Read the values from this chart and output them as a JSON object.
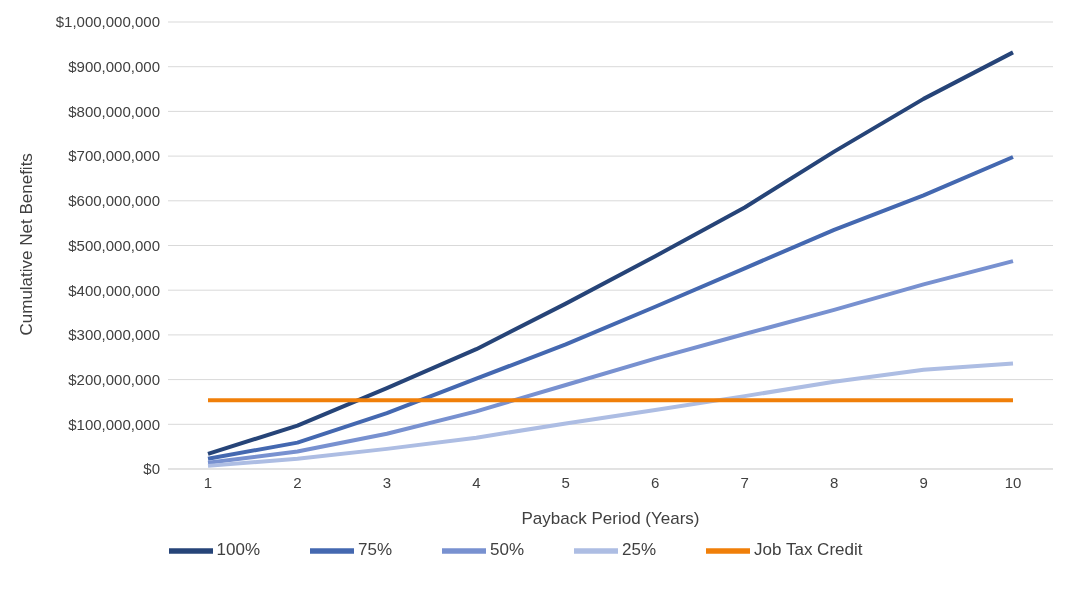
{
  "chart_data": {
    "type": "line",
    "xlabel": "Payback Period (Years)",
    "ylabel": "Cumulative Net Benefits",
    "categories": [
      "1",
      "2",
      "3",
      "4",
      "5",
      "6",
      "7",
      "8",
      "9",
      "10"
    ],
    "series": [
      {
        "name": "100%",
        "color": "#264478",
        "values": [
          34000000,
          97000000,
          181000000,
          268000000,
          370000000,
          476000000,
          585000000,
          710000000,
          828000000,
          932000000
        ]
      },
      {
        "name": "75%",
        "color": "#4468b0",
        "values": [
          23000000,
          59000000,
          125000000,
          202000000,
          279000000,
          363000000,
          449000000,
          535000000,
          612000000,
          698000000
        ]
      },
      {
        "name": "50%",
        "color": "#7891d0",
        "values": [
          14000000,
          39000000,
          79000000,
          129000000,
          188000000,
          247000000,
          302000000,
          356000000,
          413000000,
          465000000
        ]
      },
      {
        "name": "25%",
        "color": "#adbde3",
        "values": [
          7000000,
          23000000,
          45000000,
          70000000,
          102000000,
          132000000,
          163000000,
          195000000,
          222000000,
          236000000
        ]
      },
      {
        "name": "Job Tax Credit",
        "color": "#f07f09",
        "values": [
          154000000,
          154000000,
          154000000,
          154000000,
          154000000,
          154000000,
          154000000,
          154000000,
          154000000,
          154000000
        ]
      }
    ],
    "ylim": [
      0,
      1000000000
    ],
    "yticks": [
      {
        "value": 0,
        "label": "$0"
      },
      {
        "value": 100000000,
        "label": "$100,000,000"
      },
      {
        "value": 200000000,
        "label": "$200,000,000"
      },
      {
        "value": 300000000,
        "label": "$300,000,000"
      },
      {
        "value": 400000000,
        "label": "$400,000,000"
      },
      {
        "value": 500000000,
        "label": "$500,000,000"
      },
      {
        "value": 600000000,
        "label": "$600,000,000"
      },
      {
        "value": 700000000,
        "label": "$700,000,000"
      },
      {
        "value": 800000000,
        "label": "$800,000,000"
      },
      {
        "value": 900000000,
        "label": "$900,000,000"
      },
      {
        "value": 1000000000,
        "label": "$1,000,000,000"
      }
    ],
    "grid": "y",
    "legend": "bottom",
    "marker": "none",
    "line_style": "solid"
  }
}
